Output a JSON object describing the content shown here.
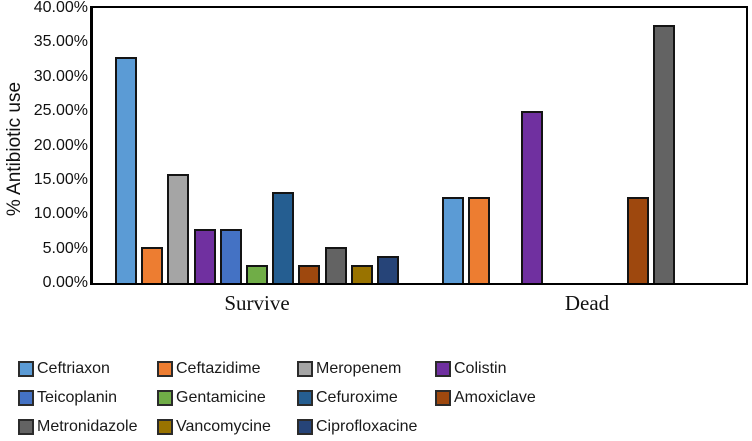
{
  "chart_data": {
    "type": "bar",
    "title": "",
    "xlabel": "",
    "ylabel": "% Antibiotic use",
    "categories": [
      "Survive",
      "Dead"
    ],
    "series": [
      {
        "name": "Ceftriaxon",
        "color": "#5B9BD5",
        "values": [
          32.9,
          12.5
        ]
      },
      {
        "name": "Ceftazidime",
        "color": "#ED7D31",
        "values": [
          5.3,
          12.5
        ]
      },
      {
        "name": "Meropenem",
        "color": "#A5A5A5",
        "values": [
          15.8,
          0
        ]
      },
      {
        "name": "Colistin",
        "color": "#7030A0",
        "values": [
          7.9,
          25.0
        ]
      },
      {
        "name": "Teicoplanin",
        "color": "#4472C4",
        "values": [
          7.9,
          0
        ]
      },
      {
        "name": "Gentamicine",
        "color": "#70AD47",
        "values": [
          2.6,
          0
        ]
      },
      {
        "name": "Cefuroxime",
        "color": "#255E91",
        "values": [
          13.2,
          0
        ]
      },
      {
        "name": "Amoxiclave",
        "color": "#9E480E",
        "values": [
          2.6,
          12.5
        ]
      },
      {
        "name": "Metronidazole",
        "color": "#636363",
        "values": [
          5.3,
          37.5
        ]
      },
      {
        "name": "Vancomycine",
        "color": "#997300",
        "values": [
          2.6,
          0
        ]
      },
      {
        "name": "Ciprofloxacine",
        "color": "#264478",
        "values": [
          3.9,
          0
        ]
      }
    ],
    "ylim": [
      0,
      40
    ],
    "ytick_labels": [
      "40.00%",
      "35.00%",
      "30.00%",
      "25.00%",
      "20.00%",
      "15.00%",
      "10.00%",
      "5.00%",
      "0.00%"
    ],
    "grid": false,
    "legend_position": "bottom",
    "legend_row_layout": [
      4,
      4,
      3
    ]
  }
}
